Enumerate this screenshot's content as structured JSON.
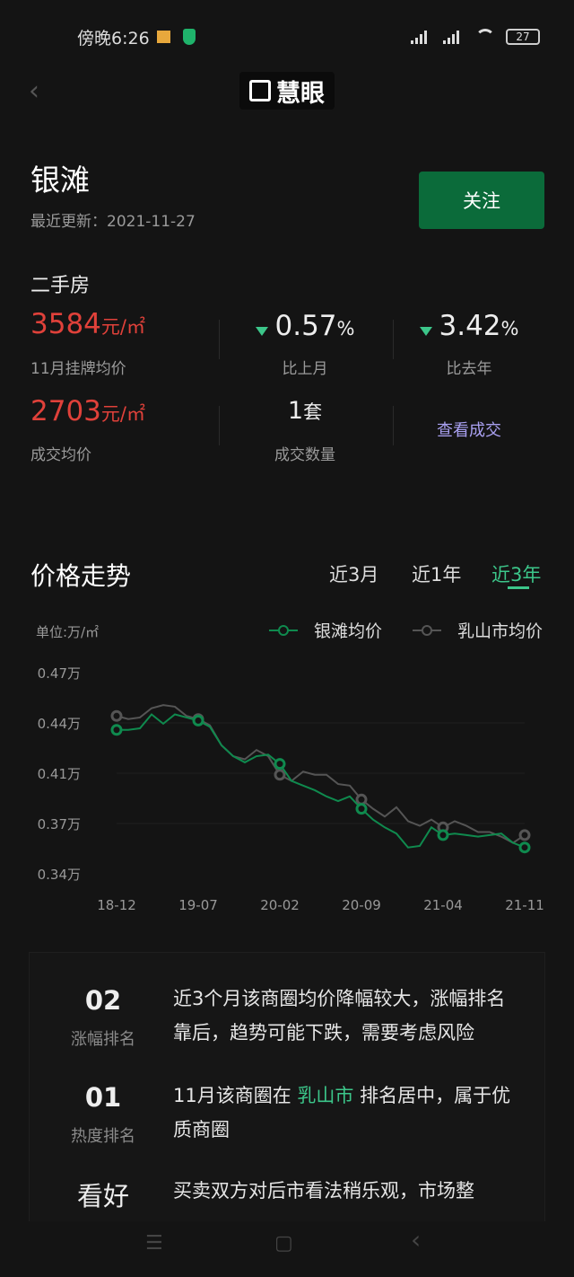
{
  "status_bar": {
    "time": "傍晚6:26",
    "battery": "27"
  },
  "header": {
    "logo_text": "慧眼"
  },
  "area": {
    "name": "银滩",
    "updated": "最近更新：2021-11-27",
    "follow_label": "关注"
  },
  "second_hand": {
    "section_title": "二手房",
    "listing_price": "3584",
    "listing_unit": "元/㎡",
    "listing_label": "11月挂牌均价",
    "mom": "0.57",
    "mom_unit": "%",
    "mom_label": "比上月",
    "yoy": "3.42",
    "yoy_unit": "%",
    "yoy_label": "比去年",
    "deal_price": "2703",
    "deal_unit": "元/㎡",
    "deal_label": "成交均价",
    "deal_count": "1",
    "deal_count_unit": "套",
    "deal_count_label": "成交数量",
    "view_deals": "查看成交"
  },
  "trend": {
    "title": "价格走势",
    "tabs": [
      {
        "label": "近3月"
      },
      {
        "label": "近1年"
      },
      {
        "label": "近3年",
        "active": true
      }
    ]
  },
  "chart_data": {
    "type": "line",
    "ylabel": "单位:万/㎡",
    "y_ticks": [
      "0.47万",
      "0.44万",
      "0.41万",
      "0.37万",
      "0.34万"
    ],
    "x_ticks": [
      "18-12",
      "19-07",
      "20-02",
      "20-09",
      "21-04",
      "21-11"
    ],
    "ylim": [
      0.34,
      0.47
    ],
    "grid": true,
    "legend_position": "top-right",
    "x": [
      "18-12",
      "19-01",
      "19-02",
      "19-03",
      "19-04",
      "19-05",
      "19-06",
      "19-07",
      "19-08",
      "19-09",
      "19-10",
      "19-11",
      "19-12",
      "20-01",
      "20-02",
      "20-03",
      "20-04",
      "20-05",
      "20-06",
      "20-07",
      "20-08",
      "20-09",
      "20-10",
      "20-11",
      "20-12",
      "21-01",
      "21-02",
      "21-03",
      "21-04",
      "21-05",
      "21-06",
      "21-07",
      "21-08",
      "21-09",
      "21-10",
      "21-11"
    ],
    "series": [
      {
        "name": "银滩均价",
        "color": "#0f8a4e",
        "values": [
          0.433,
          0.433,
          0.434,
          0.443,
          0.437,
          0.443,
          0.441,
          0.439,
          0.435,
          0.423,
          0.416,
          0.412,
          0.416,
          0.417,
          0.411,
          0.4,
          0.397,
          0.394,
          0.39,
          0.387,
          0.39,
          0.382,
          0.375,
          0.37,
          0.366,
          0.357,
          0.358,
          0.37,
          0.365,
          0.366,
          0.365,
          0.364,
          0.365,
          0.366,
          0.36,
          0.357
        ]
      },
      {
        "name": "乳山市均价",
        "color": "#555555",
        "values": [
          0.442,
          0.44,
          0.441,
          0.447,
          0.449,
          0.448,
          0.442,
          0.44,
          0.436,
          0.423,
          0.416,
          0.414,
          0.42,
          0.416,
          0.404,
          0.4,
          0.406,
          0.404,
          0.404,
          0.398,
          0.397,
          0.388,
          0.382,
          0.377,
          0.383,
          0.374,
          0.371,
          0.375,
          0.37,
          0.374,
          0.371,
          0.367,
          0.367,
          0.364,
          0.36,
          0.365
        ]
      }
    ]
  },
  "insights": [
    {
      "rank": "02",
      "label": "涨幅排名",
      "text": "近3个月该商圈均价降幅较大，涨幅排名靠后，趋势可能下跌，需要考虑风险"
    },
    {
      "rank": "01",
      "label": "热度排名",
      "text_pre": "11月该商圈在 ",
      "text_hl": "乳山市",
      "text_post": " 排名居中，属于优质商圈"
    },
    {
      "rank": "看好",
      "text": "买卖双方对后市看法稍乐观，市场整"
    }
  ],
  "nav_bar": {
    "menu": "☰",
    "home": "▢",
    "back": "‹"
  }
}
